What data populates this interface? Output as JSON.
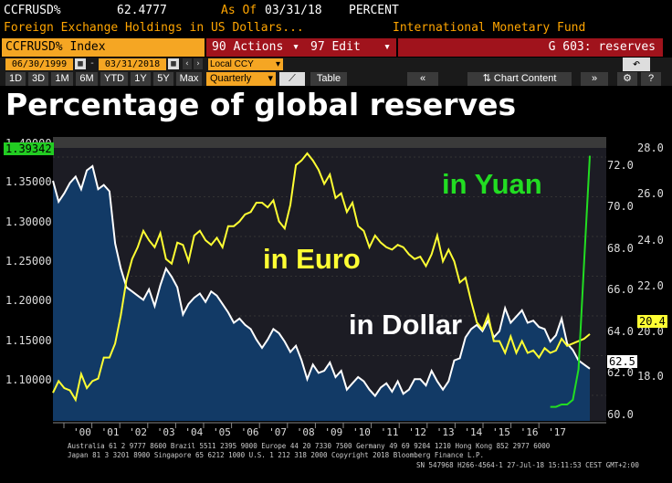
{
  "header": {
    "ticker": "CCFRUSD%",
    "value": "62.4777",
    "as_of_label": "As Of",
    "as_of_date": "03/31/18",
    "unit": "PERCENT",
    "description": "Foreign Exchange Holdings in US Dollars...",
    "source": "International Monetary Fund"
  },
  "toolbar": {
    "index_label": "CCFRUSD% Index",
    "actions_label": "90 Actions",
    "edit_label": "97 Edit",
    "page_label": "G 603: reserves"
  },
  "controls": {
    "start_date": "06/30/1999",
    "end_date": "03/31/2018",
    "currency": "Local CCY",
    "frequency": "Quarterly",
    "table_label": "Table",
    "chart_content_label": "Chart Content"
  },
  "periods": [
    "1D",
    "3D",
    "1M",
    "6M",
    "YTD",
    "1Y",
    "5Y",
    "Max"
  ],
  "chart_data": {
    "type": "line",
    "title": "Percentage of global reserves",
    "annotations": [
      "in Yuan",
      "in Euro",
      "in Dollar"
    ],
    "left_axis": {
      "ticks": [
        "1.40000",
        "1.35000",
        "1.30000",
        "1.25000",
        "1.20000",
        "1.15000",
        "1.10000"
      ],
      "current": "1.39342"
    },
    "right_outer_axis": {
      "ticks": [
        "28.0",
        "26.0",
        "24.0",
        "22.0",
        "20.0",
        "18.0"
      ],
      "current": "20.4"
    },
    "right_inner_axis": {
      "ticks": [
        "72.0",
        "70.0",
        "68.0",
        "66.0",
        "64.0",
        "62.0",
        "60.0"
      ],
      "current": "62.5"
    },
    "x_labels": [
      "'00",
      "'01",
      "'02",
      "'03",
      "'04",
      "'05",
      "'06",
      "'07",
      "'08",
      "'09",
      "'10",
      "'11",
      "'12",
      "'13",
      "'14",
      "'15",
      "'16",
      "'17"
    ],
    "series": [
      {
        "name": "in Dollar",
        "color": "#ffffff",
        "ylim": [
          60,
          73.6
        ],
        "values": [
          71.5,
          70.5,
          70.9,
          71.4,
          71.7,
          71.1,
          72.0,
          72.2,
          71.1,
          71.3,
          71.0,
          68.5,
          67.3,
          66.4,
          66.2,
          66.0,
          65.8,
          66.3,
          65.5,
          66.5,
          67.3,
          66.9,
          66.4,
          65.1,
          65.6,
          65.9,
          66.1,
          65.7,
          66.2,
          66.0,
          65.6,
          65.2,
          64.7,
          64.9,
          64.6,
          64.4,
          63.9,
          63.5,
          63.9,
          64.4,
          64.2,
          63.8,
          63.3,
          63.6,
          62.9,
          62.0,
          62.7,
          62.3,
          62.4,
          62.8,
          62.1,
          62.4,
          61.5,
          61.8,
          62.1,
          61.9,
          61.5,
          61.2,
          61.6,
          61.8,
          61.4,
          61.9,
          61.3,
          61.5,
          62.0,
          62.0,
          61.7,
          62.4,
          61.9,
          61.5,
          61.9,
          62.9,
          63.0,
          64.0,
          64.4,
          64.6,
          64.3,
          64.8,
          64.0,
          64.3,
          65.4,
          64.7,
          65.0,
          65.3,
          64.7,
          64.8,
          64.5,
          64.4,
          63.8,
          64.1,
          64.9,
          63.7,
          63.4,
          62.9,
          62.7,
          62.5
        ]
      },
      {
        "name": "in Euro",
        "color": "#ffff33",
        "ylim": [
          16.7,
          28.8
        ],
        "values": [
          17.9,
          18.4,
          18.1,
          18.0,
          17.6,
          18.7,
          18.1,
          18.4,
          18.5,
          19.4,
          19.4,
          20.0,
          21.2,
          22.7,
          23.6,
          24.1,
          24.8,
          24.4,
          24.1,
          24.7,
          23.6,
          23.4,
          24.3,
          24.2,
          23.5,
          24.6,
          24.8,
          24.4,
          24.2,
          24.5,
          24.1,
          25.0,
          25.0,
          25.2,
          25.5,
          25.6,
          26.0,
          26.0,
          25.8,
          26.1,
          25.2,
          24.9,
          25.9,
          27.6,
          27.8,
          28.1,
          27.8,
          27.4,
          26.8,
          27.2,
          26.2,
          26.4,
          25.6,
          26.0,
          25.0,
          24.8,
          24.1,
          24.6,
          24.3,
          24.1,
          24.0,
          24.2,
          24.1,
          23.8,
          23.6,
          23.7,
          23.3,
          23.8,
          24.6,
          23.5,
          24.0,
          23.5,
          22.6,
          22.8,
          21.8,
          20.9,
          20.6,
          21.2,
          20.1,
          20.1,
          19.6,
          20.3,
          19.6,
          20.1,
          19.6,
          19.7,
          19.4,
          19.8,
          19.6,
          19.7,
          20.2,
          19.9,
          20.0,
          20.1,
          20.2,
          20.4
        ]
      },
      {
        "name": "in Yuan",
        "color": "#22dd22",
        "ylim": [
          16.7,
          28.8
        ],
        "values": [
          17.3,
          17.3,
          17.4,
          17.4,
          17.6,
          18.9,
          23.5,
          28.0
        ]
      }
    ]
  },
  "footer": {
    "line1": "Australia 61 2 9777 8600 Brazil 5511 2395 9000 Europe 44 20 7330 7500 Germany 49 69 9204 1210 Hong Kong 852 2977 6000",
    "line2": "Japan 81 3 3201 8900      Singapore 65 6212 1000      U.S. 1 212 318 2000                 Copyright 2018 Bloomberg Finance L.P.",
    "line3": "SN 547968 H266-4564-1 27-Jul-18 15:11:53 CEST GMT+2:00"
  }
}
